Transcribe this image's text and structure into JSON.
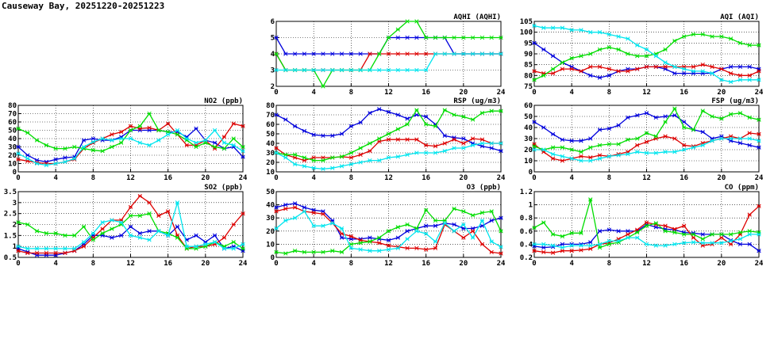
{
  "title": "Causeway Bay, 20251220-20251223",
  "colors": {
    "blue": "#0000dd",
    "red": "#dd0000",
    "green": "#00dd00",
    "cyan": "#00e5ee"
  },
  "chart_data": [
    {
      "type": "line",
      "title": "AQHI (AQHI)",
      "ylim": [
        2,
        6
      ],
      "xlim": [
        0,
        24
      ],
      "yticks": [
        2,
        3,
        4,
        5,
        6
      ],
      "xticks": [
        0,
        4,
        8,
        12,
        16,
        20,
        24
      ],
      "series": [
        {
          "color": "#0000dd",
          "values": [
            5,
            4,
            4,
            4,
            4,
            4,
            4,
            4,
            4,
            4,
            4,
            4,
            5,
            5,
            5,
            5,
            5,
            5,
            5,
            4,
            4,
            4,
            4,
            4,
            4
          ]
        },
        {
          "color": "#dd0000",
          "values": [
            4,
            3,
            3,
            3,
            3,
            3,
            3,
            3,
            3,
            3,
            4,
            4,
            4,
            4,
            4,
            4,
            4,
            4,
            4,
            4,
            4,
            4,
            4,
            4,
            4
          ]
        },
        {
          "color": "#00dd00",
          "values": [
            4,
            3,
            3,
            3,
            3,
            2,
            3,
            3,
            3,
            3,
            3,
            4,
            5,
            5.5,
            6,
            6,
            5,
            5,
            5,
            5,
            5,
            5,
            5,
            5,
            5
          ]
        },
        {
          "color": "#00e5ee",
          "values": [
            3,
            3,
            3,
            3,
            3,
            3,
            3,
            3,
            3,
            3,
            3,
            3,
            3,
            3,
            3,
            3,
            3,
            4,
            4,
            4,
            4,
            4,
            4,
            4,
            4
          ]
        }
      ]
    },
    {
      "type": "line",
      "title": "AQI (AQI)",
      "ylim": [
        75,
        105
      ],
      "xlim": [
        0,
        24
      ],
      "yticks": [
        75,
        80,
        85,
        90,
        95,
        100,
        105
      ],
      "xticks": [
        0,
        4,
        8,
        12,
        16,
        20,
        24
      ],
      "series": [
        {
          "color": "#0000dd",
          "values": [
            95,
            92,
            89,
            86,
            84,
            82,
            80,
            79,
            80,
            82,
            83,
            83,
            84,
            84,
            83,
            81,
            81,
            81,
            81,
            81,
            83,
            84,
            84,
            84,
            83
          ]
        },
        {
          "color": "#dd0000",
          "values": [
            82,
            81,
            81,
            83,
            83,
            82,
            84,
            84,
            83,
            82,
            82,
            83,
            84,
            84,
            84,
            84,
            84,
            84,
            85,
            84,
            83,
            81,
            80,
            80,
            82
          ]
        },
        {
          "color": "#00dd00",
          "values": [
            78,
            80,
            83,
            86,
            88,
            89,
            90,
            92,
            93,
            92,
            90,
            89,
            89,
            90,
            92,
            96,
            98,
            99,
            99,
            98,
            98,
            97,
            95,
            94,
            94
          ]
        },
        {
          "color": "#00e5ee",
          "values": [
            103,
            102,
            102,
            102,
            101,
            101,
            100,
            100,
            99,
            98,
            97,
            94,
            92,
            89,
            86,
            84,
            83,
            82,
            82,
            81,
            78,
            77,
            78,
            78,
            78
          ]
        }
      ]
    },
    {
      "type": "line",
      "title": "NO2 (ppb)",
      "ylim": [
        0,
        80
      ],
      "xlim": [
        0,
        24
      ],
      "yticks": [
        0,
        10,
        20,
        30,
        40,
        50,
        60,
        70,
        80
      ],
      "xticks": [
        0,
        4,
        8,
        12,
        16,
        20,
        24
      ],
      "series": [
        {
          "color": "#0000dd",
          "values": [
            30,
            20,
            14,
            12,
            15,
            17,
            18,
            38,
            40,
            38,
            38,
            42,
            50,
            50,
            50,
            50,
            48,
            48,
            42,
            52,
            38,
            35,
            28,
            30,
            18
          ]
        },
        {
          "color": "#dd0000",
          "values": [
            15,
            13,
            11,
            10,
            10,
            12,
            15,
            28,
            35,
            40,
            45,
            48,
            55,
            52,
            53,
            50,
            58,
            45,
            32,
            32,
            38,
            28,
            42,
            58,
            55
          ]
        },
        {
          "color": "#00dd00",
          "values": [
            52,
            47,
            38,
            32,
            28,
            28,
            30,
            28,
            26,
            25,
            30,
            35,
            50,
            55,
            70,
            50,
            48,
            45,
            38,
            30,
            35,
            30,
            28,
            40,
            30
          ]
        },
        {
          "color": "#00e5ee",
          "values": [
            22,
            16,
            10,
            8,
            10,
            12,
            16,
            30,
            36,
            40,
            38,
            40,
            40,
            35,
            32,
            38,
            45,
            50,
            40,
            35,
            38,
            50,
            35,
            32,
            25
          ]
        }
      ]
    },
    {
      "type": "line",
      "title": "RSP (ug/m3)",
      "ylim": [
        10,
        80
      ],
      "xlim": [
        0,
        24
      ],
      "yticks": [
        10,
        20,
        30,
        40,
        50,
        60,
        70,
        80
      ],
      "xticks": [
        0,
        4,
        8,
        12,
        16,
        20,
        24
      ],
      "series": [
        {
          "color": "#0000dd",
          "values": [
            70,
            65,
            58,
            53,
            49,
            48,
            48,
            50,
            58,
            62,
            72,
            76,
            73,
            70,
            66,
            70,
            68,
            60,
            48,
            46,
            45,
            40,
            37,
            35,
            32
          ]
        },
        {
          "color": "#dd0000",
          "values": [
            35,
            28,
            25,
            22,
            25,
            25,
            25,
            26,
            25,
            28,
            32,
            42,
            44,
            44,
            44,
            44,
            38,
            37,
            40,
            44,
            40,
            45,
            44,
            40,
            40
          ]
        },
        {
          "color": "#00dd00",
          "values": [
            30,
            28,
            28,
            25,
            22,
            22,
            25,
            26,
            30,
            35,
            40,
            45,
            50,
            55,
            60,
            75,
            60,
            58,
            75,
            70,
            68,
            65,
            72,
            74,
            74
          ]
        },
        {
          "color": "#00e5ee",
          "values": [
            30,
            25,
            18,
            16,
            14,
            13,
            14,
            16,
            18,
            20,
            22,
            22,
            25,
            26,
            28,
            30,
            30,
            30,
            32,
            35,
            35,
            38,
            40,
            40,
            40
          ]
        }
      ]
    },
    {
      "type": "line",
      "title": "FSP (ug/m3)",
      "ylim": [
        0,
        60
      ],
      "xlim": [
        0,
        24
      ],
      "yticks": [
        0,
        10,
        20,
        30,
        40,
        50,
        60
      ],
      "xticks": [
        0,
        4,
        8,
        12,
        16,
        20,
        24
      ],
      "series": [
        {
          "color": "#0000dd",
          "values": [
            45,
            40,
            34,
            29,
            28,
            28,
            30,
            38,
            39,
            42,
            49,
            51,
            53,
            49,
            50,
            51,
            45,
            38,
            36,
            30,
            32,
            28,
            26,
            24,
            22
          ]
        },
        {
          "color": "#dd0000",
          "values": [
            25,
            18,
            12,
            10,
            12,
            14,
            13,
            15,
            14,
            16,
            18,
            24,
            27,
            30,
            32,
            30,
            24,
            23,
            26,
            28,
            30,
            32,
            30,
            35,
            34
          ]
        },
        {
          "color": "#00dd00",
          "values": [
            23,
            20,
            22,
            22,
            20,
            18,
            22,
            24,
            25,
            25,
            29,
            30,
            35,
            32,
            45,
            57,
            40,
            38,
            55,
            50,
            48,
            52,
            53,
            49,
            47
          ]
        },
        {
          "color": "#00e5ee",
          "values": [
            20,
            20,
            16,
            14,
            12,
            10,
            10,
            12,
            14,
            15,
            16,
            18,
            17,
            17,
            18,
            18,
            20,
            22,
            24,
            28,
            30,
            30,
            30,
            30,
            28
          ]
        }
      ]
    },
    {
      "type": "line",
      "title": "SO2 (ppb)",
      "ylim": [
        0.5,
        3.5
      ],
      "xlim": [
        0,
        24
      ],
      "yticks": [
        0.5,
        1.0,
        1.5,
        2.0,
        2.5,
        3.0,
        3.5
      ],
      "xticks": [
        0,
        4,
        8,
        12,
        16,
        20,
        24
      ],
      "series": [
        {
          "color": "#0000dd",
          "values": [
            0.9,
            0.75,
            0.6,
            0.6,
            0.6,
            0.7,
            0.8,
            1.1,
            1.5,
            1.5,
            1.4,
            1.5,
            1.9,
            1.6,
            1.7,
            1.7,
            1.5,
            1.9,
            1.3,
            1.5,
            1.2,
            1.5,
            0.9,
            1.0,
            0.8
          ]
        },
        {
          "color": "#dd0000",
          "values": [
            0.8,
            0.7,
            0.7,
            0.7,
            0.7,
            0.7,
            0.8,
            1.0,
            1.4,
            1.8,
            2.2,
            2.2,
            2.8,
            3.3,
            3.0,
            2.4,
            2.6,
            1.5,
            0.9,
            1.0,
            1.0,
            1.1,
            1.4,
            2.0,
            2.5
          ]
        },
        {
          "color": "#00dd00",
          "values": [
            2.1,
            2.0,
            1.7,
            1.6,
            1.6,
            1.5,
            1.5,
            1.9,
            1.3,
            1.6,
            1.8,
            2.0,
            2.4,
            2.4,
            2.5,
            1.7,
            1.6,
            1.4,
            0.9,
            0.9,
            1.0,
            1.2,
            1.0,
            1.2,
            0.9
          ]
        },
        {
          "color": "#00e5ee",
          "values": [
            1.0,
            0.9,
            0.9,
            0.9,
            0.9,
            0.9,
            0.9,
            1.2,
            1.6,
            2.1,
            2.2,
            2.1,
            1.5,
            1.4,
            1.3,
            1.7,
            1.5,
            3.0,
            1.0,
            1.0,
            1.1,
            1.2,
            0.9,
            0.9,
            1.1
          ]
        }
      ]
    },
    {
      "type": "line",
      "title": "O3 (ppb)",
      "ylim": [
        0,
        50
      ],
      "xlim": [
        0,
        24
      ],
      "yticks": [
        0,
        10,
        20,
        30,
        40,
        50
      ],
      "xticks": [
        0,
        4,
        8,
        12,
        16,
        20,
        24
      ],
      "series": [
        {
          "color": "#0000dd",
          "values": [
            38,
            40,
            41,
            38,
            36,
            35,
            28,
            15,
            14,
            14,
            15,
            14,
            13,
            15,
            20,
            22,
            24,
            24,
            26,
            25,
            22,
            22,
            24,
            28,
            30
          ]
        },
        {
          "color": "#dd0000",
          "values": [
            35,
            37,
            38,
            35,
            34,
            33,
            26,
            18,
            16,
            13,
            12,
            11,
            9,
            8,
            7,
            7,
            6,
            7,
            25,
            20,
            15,
            20,
            10,
            4,
            3
          ]
        },
        {
          "color": "#00dd00",
          "values": [
            4,
            3,
            5,
            4,
            4,
            4,
            5,
            4,
            10,
            11,
            12,
            15,
            20,
            23,
            25,
            22,
            36,
            28,
            28,
            37,
            35,
            32,
            34,
            35,
            20
          ]
        },
        {
          "color": "#00e5ee",
          "values": [
            22,
            28,
            30,
            35,
            24,
            24,
            26,
            22,
            7,
            6,
            5,
            5,
            6,
            7,
            14,
            20,
            18,
            12,
            26,
            20,
            25,
            15,
            28,
            12,
            8
          ]
        }
      ]
    },
    {
      "type": "line",
      "title": "CO (ppm)",
      "ylim": [
        0.2,
        1.2
      ],
      "xlim": [
        0,
        24
      ],
      "yticks": [
        0.2,
        0.4,
        0.6,
        0.8,
        1.0,
        1.2
      ],
      "xticks": [
        0,
        4,
        8,
        12,
        16,
        20,
        24
      ],
      "series": [
        {
          "color": "#0000dd",
          "values": [
            0.37,
            0.35,
            0.36,
            0.4,
            0.4,
            0.4,
            0.43,
            0.6,
            0.62,
            0.6,
            0.6,
            0.6,
            0.7,
            0.66,
            0.63,
            0.62,
            0.58,
            0.57,
            0.55,
            0.55,
            0.55,
            0.46,
            0.4,
            0.4,
            0.3
          ]
        },
        {
          "color": "#dd0000",
          "values": [
            0.3,
            0.28,
            0.27,
            0.3,
            0.3,
            0.31,
            0.33,
            0.4,
            0.42,
            0.48,
            0.55,
            0.62,
            0.73,
            0.7,
            0.68,
            0.63,
            0.68,
            0.5,
            0.38,
            0.4,
            0.5,
            0.4,
            0.55,
            0.85,
            0.98
          ]
        },
        {
          "color": "#00dd00",
          "values": [
            0.65,
            0.73,
            0.55,
            0.52,
            0.57,
            0.57,
            1.08,
            0.35,
            0.4,
            0.43,
            0.5,
            0.58,
            0.68,
            0.72,
            0.6,
            0.58,
            0.55,
            0.55,
            0.48,
            0.55,
            0.55,
            0.55,
            0.58,
            0.6,
            0.58
          ]
        },
        {
          "color": "#00e5ee",
          "values": [
            0.4,
            0.4,
            0.38,
            0.35,
            0.38,
            0.38,
            0.38,
            0.4,
            0.45,
            0.45,
            0.5,
            0.5,
            0.4,
            0.38,
            0.38,
            0.4,
            0.42,
            0.43,
            0.42,
            0.42,
            0.42,
            0.45,
            0.48,
            0.55,
            0.55
          ]
        }
      ]
    }
  ]
}
